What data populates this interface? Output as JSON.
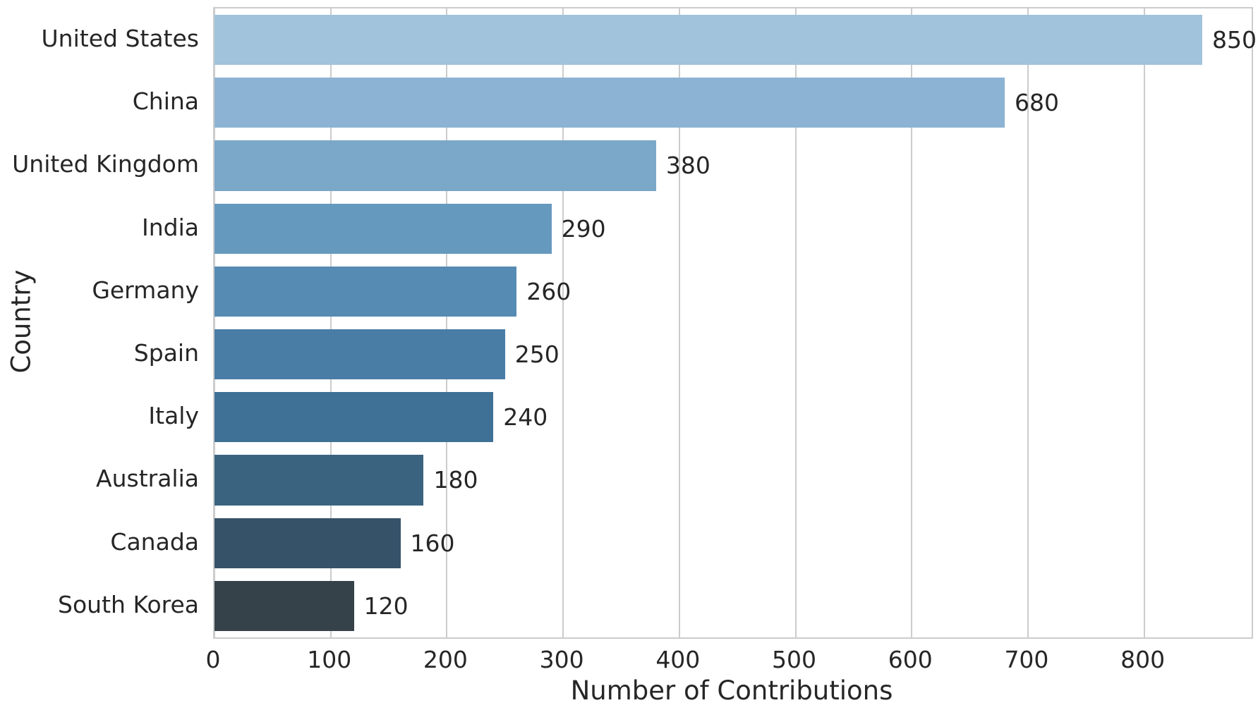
{
  "chart_data": {
    "type": "bar",
    "orientation": "horizontal",
    "title": "",
    "xlabel": "Number of Contributions",
    "ylabel": "Country",
    "categories": [
      "United States",
      "China",
      "United Kingdom",
      "India",
      "Germany",
      "Spain",
      "Italy",
      "Australia",
      "Canada",
      "South Korea"
    ],
    "values": [
      850,
      680,
      380,
      290,
      260,
      250,
      240,
      180,
      160,
      120
    ],
    "value_labels": [
      "850",
      "680",
      "380",
      "290",
      "260",
      "250",
      "240",
      "180",
      "160",
      "120"
    ],
    "bar_colors": [
      "#a1c3dc",
      "#8cb3d3",
      "#7ba7c9",
      "#6699be",
      "#568bb3",
      "#497da6",
      "#3f7096",
      "#3a6380",
      "#365269",
      "#36424a"
    ],
    "x_ticks": [
      0,
      100,
      200,
      300,
      400,
      500,
      600,
      700,
      800
    ],
    "xlim": [
      0,
      892.5
    ],
    "grid": true,
    "grid_axis": "x",
    "grid_color": "#cccccc",
    "spine_color": "#cccccc",
    "text_color": "#262626",
    "background_color": "#ffffff",
    "legend": "none"
  }
}
